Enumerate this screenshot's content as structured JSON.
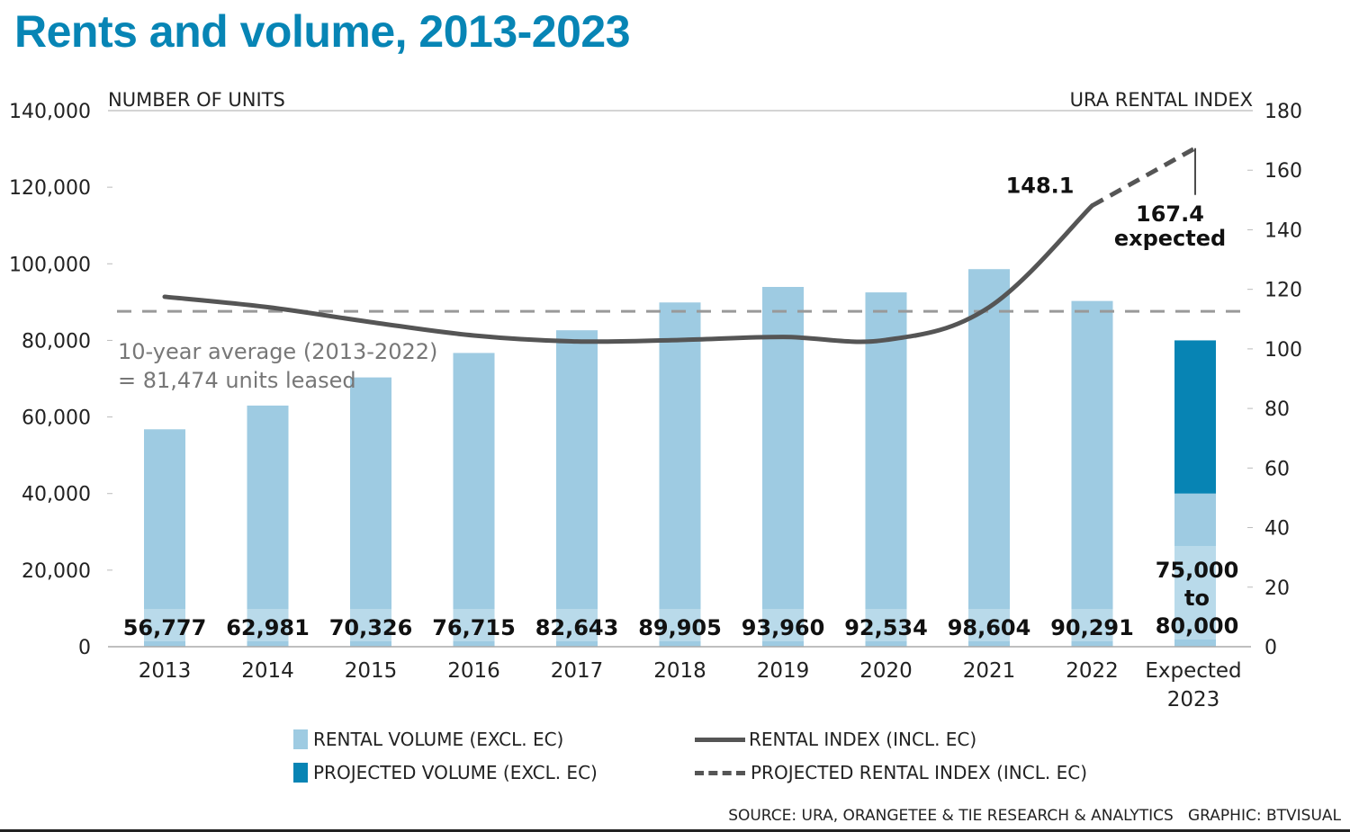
{
  "title": "Rents and volume, 2013-2023",
  "chart_data": {
    "type": "bar+line",
    "title": "Rents and volume, 2013-2023",
    "categories": [
      "2013",
      "2014",
      "2015",
      "2016",
      "2017",
      "2018",
      "2019",
      "2020",
      "2021",
      "2022",
      "Expected 2023"
    ],
    "category_lines": [
      [
        "2013"
      ],
      [
        "2014"
      ],
      [
        "2015"
      ],
      [
        "2016"
      ],
      [
        "2017"
      ],
      [
        "2018"
      ],
      [
        "2019"
      ],
      [
        "2020"
      ],
      [
        "2021"
      ],
      [
        "2022"
      ],
      [
        "Expected",
        "2023"
      ]
    ],
    "left_axis": {
      "label": "NUMBER OF UNITS",
      "ylim": [
        0,
        140000
      ],
      "ticks": [
        0,
        20000,
        40000,
        60000,
        80000,
        100000,
        120000,
        140000
      ],
      "tick_labels": [
        "0",
        "20,000",
        "40,000",
        "60,000",
        "80,000",
        "100,000",
        "120,000",
        "140,000"
      ]
    },
    "right_axis": {
      "label": "URA RENTAL INDEX",
      "ylim": [
        0,
        180
      ],
      "ticks": [
        0,
        20,
        40,
        60,
        80,
        100,
        120,
        140,
        160,
        180
      ],
      "tick_labels": [
        "0",
        "20",
        "40",
        "60",
        "80",
        "100",
        "120",
        "140",
        "160",
        "180"
      ]
    },
    "series": [
      {
        "name": "RENTAL VOLUME (EXCL. EC)",
        "type": "bar",
        "axis": "left",
        "color": "#9ecbe2",
        "values": [
          56777,
          62981,
          70326,
          76715,
          82643,
          89905,
          93960,
          92534,
          98604,
          90291,
          40000
        ],
        "labels": [
          "56,777",
          "62,981",
          "70,326",
          "76,715",
          "82,643",
          "89,905",
          "93,960",
          "92,534",
          "98,604",
          "90,291",
          ""
        ]
      },
      {
        "name": "PROJECTED VOLUME (EXCL. EC)",
        "type": "bar-stacked",
        "axis": "left",
        "color": "#0784b4",
        "category": "Expected 2023",
        "range": [
          40000,
          80000
        ],
        "label_lines": [
          "75,000",
          "to",
          "80,000"
        ]
      },
      {
        "name": "RENTAL INDEX (INCL. EC)",
        "type": "line",
        "axis": "right",
        "color": "#555555",
        "values": [
          117.5,
          114,
          109,
          104.5,
          102.5,
          103,
          104,
          103,
          114,
          148.1,
          null
        ]
      },
      {
        "name": "PROJECTED RENTAL INDEX (INCL. EC)",
        "type": "line-dashed",
        "axis": "right",
        "color": "#555555",
        "values": [
          null,
          null,
          null,
          null,
          null,
          null,
          null,
          null,
          null,
          148.1,
          167.4
        ]
      }
    ],
    "reference_line": {
      "axis": "left",
      "value": 81474,
      "style": "dashed",
      "color": "#999999",
      "label_lines": [
        "10-year average (2013-2022)",
        "= 81,474 units leased"
      ]
    },
    "annotations": [
      {
        "text": "148.1",
        "category": "2022",
        "series": "RENTAL INDEX (INCL. EC)"
      },
      {
        "text_lines": [
          "167.4",
          "expected"
        ],
        "category": "Expected 2023",
        "series": "PROJECTED RENTAL INDEX (INCL. EC)"
      }
    ],
    "grid": false,
    "legend_position": "bottom"
  },
  "legend": {
    "rental_volume": "RENTAL VOLUME (EXCL. EC)",
    "projected_volume": "PROJECTED VOLUME (EXCL. EC)",
    "rental_index": "RENTAL INDEX (INCL. EC)",
    "projected_index": "PROJECTED RENTAL INDEX (INCL. EC)"
  },
  "colors": {
    "title": "#0785b5",
    "bar": "#9ecbe2",
    "bar_label_band": "#c4e0ee",
    "projected": "#0784b4",
    "line": "#555555",
    "avg_line": "#999999"
  },
  "source": "SOURCE: URA, ORANGETEE & TIE RESEARCH & ANALYTICS   GRAPHIC: BTVISUAL"
}
